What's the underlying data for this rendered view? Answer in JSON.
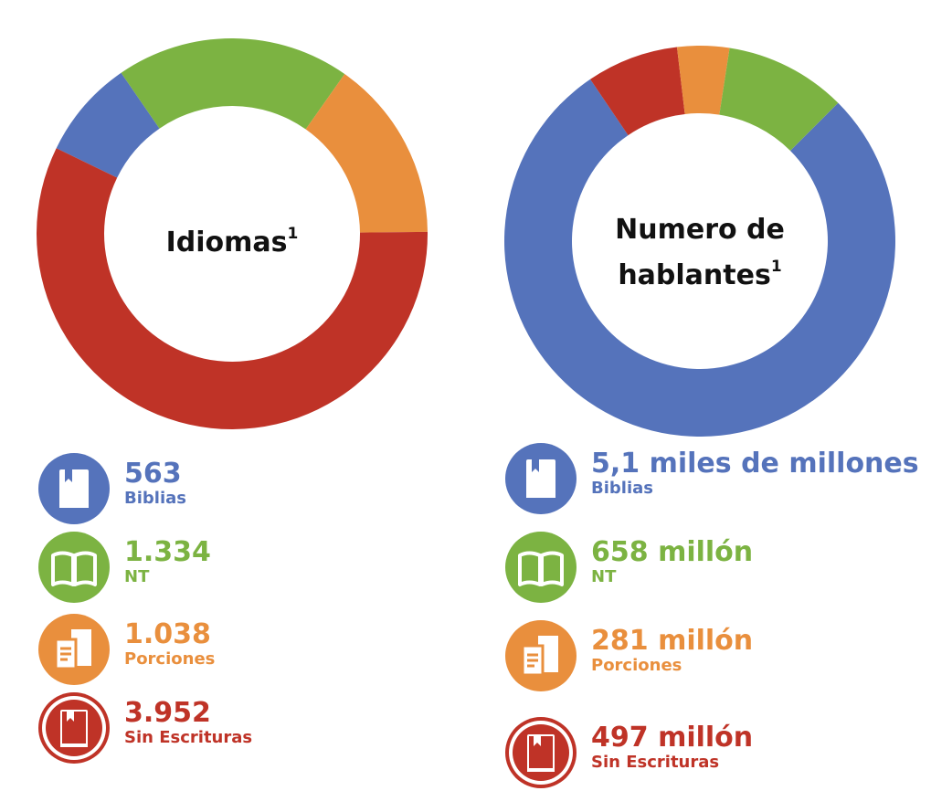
{
  "colors": {
    "biblias": "#5573bb",
    "nt": "#7cb342",
    "porciones": "#e98f3d",
    "sin": "#bf3327"
  },
  "chart_data": [
    {
      "type": "pie",
      "title": "Idiomas",
      "title_superscript": "1",
      "categories": [
        "Biblias",
        "NT",
        "Porciones",
        "Sin Escrituras"
      ],
      "values": [
        563,
        1334,
        1038,
        3952
      ],
      "value_labels": [
        "563",
        "1.334",
        "1.038",
        "3.952"
      ],
      "icons": [
        "closed-bible-icon",
        "open-book-icon",
        "portions-pages-icon",
        "bible-in-ring-icon"
      ]
    },
    {
      "type": "pie",
      "title": "Numero de hablantes",
      "title_line1": "Numero de",
      "title_line2": "hablantes",
      "title_superscript": "1",
      "categories": [
        "Biblias",
        "NT",
        "Porciones",
        "Sin Escrituras"
      ],
      "values": [
        5100,
        658,
        281,
        497
      ],
      "value_labels": [
        "5,1 miles de millones",
        "658 millón",
        "281 millón",
        "497 millón"
      ],
      "icons": [
        "closed-bible-icon",
        "open-book-icon",
        "portions-pages-icon",
        "bible-in-ring-icon"
      ]
    }
  ]
}
